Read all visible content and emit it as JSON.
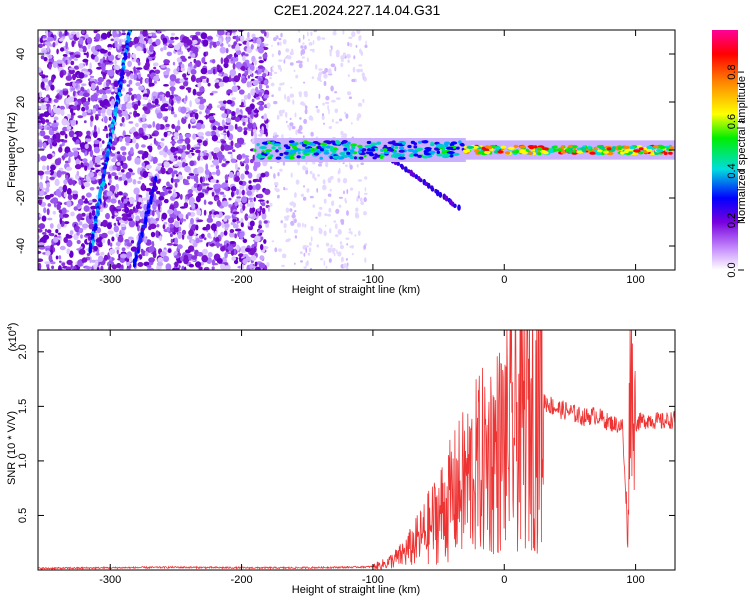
{
  "title": "C2E1.2024.227.14.04.G31",
  "chart_data": [
    {
      "type": "heatmap",
      "xlabel": "Height of straight line (km)",
      "ylabel": "Frequency (Hz)",
      "xlim": [
        -355,
        130
      ],
      "ylim": [
        -50,
        50
      ],
      "xticks": [
        -300,
        -200,
        -100,
        0,
        100
      ],
      "yticks": [
        -40,
        -20,
        0,
        20,
        40
      ],
      "colorbar": {
        "label": "Normalized spectral amplitude",
        "range": [
          0,
          0.97
        ],
        "ticks": [
          0.0,
          0.2,
          0.4,
          0.6,
          0.8
        ],
        "colors": [
          "#ffffff",
          "#cc99ff",
          "#7700dd",
          "#0000ff",
          "#00dddd",
          "#00ee00",
          "#ffff00",
          "#ff8800",
          "#ff0000",
          "#ff0099"
        ]
      },
      "features": {
        "noise_region_x": [
          -355,
          -180
        ],
        "sparse_noise_x": [
          -180,
          -105
        ],
        "signal_band_x": [
          -190,
          130
        ],
        "signal_band_frequency": 0,
        "descending_streak_1": {
          "x": [
            -285,
            -315
          ],
          "y": [
            50,
            -42
          ]
        },
        "descending_streak_2": {
          "x": [
            -265,
            -282
          ],
          "y": [
            -12,
            -48
          ]
        },
        "descending_streak_3": {
          "x": [
            -90,
            -35
          ],
          "y": [
            -2,
            -24
          ]
        }
      }
    },
    {
      "type": "line",
      "xlabel": "Height of straight line (km)",
      "ylabel": "SNR (10 * V/V)",
      "scale_label": "(x10",
      "scale_exponent": "4",
      "xlim": [
        -355,
        130
      ],
      "ylim": [
        0,
        22000
      ],
      "xticks": [
        -300,
        -200,
        -100,
        0,
        100
      ],
      "yticks": [
        5000,
        10000,
        15000,
        20000
      ],
      "ytick_labels": [
        "0.5",
        "1.0",
        "1.5",
        "2.0"
      ],
      "series": [
        {
          "color": "#ee3333",
          "x": [
            -355,
            -300,
            -250,
            -200,
            -160,
            -120,
            -100,
            -90,
            -80,
            -70,
            -60,
            -50,
            -40,
            -30,
            -20,
            -10,
            0,
            10,
            20,
            30,
            40,
            50,
            60,
            70,
            80,
            90,
            94,
            96,
            98,
            100,
            110,
            120,
            130
          ],
          "y": [
            150,
            200,
            250,
            200,
            200,
            250,
            300,
            600,
            1200,
            2200,
            3500,
            5000,
            6500,
            8000,
            9500,
            10500,
            11500,
            13000,
            14500,
            15500,
            14800,
            14500,
            14000,
            14200,
            13500,
            13200,
            2700,
            20000,
            14500,
            13500,
            13800,
            13600,
            13800
          ]
        }
      ]
    }
  ]
}
